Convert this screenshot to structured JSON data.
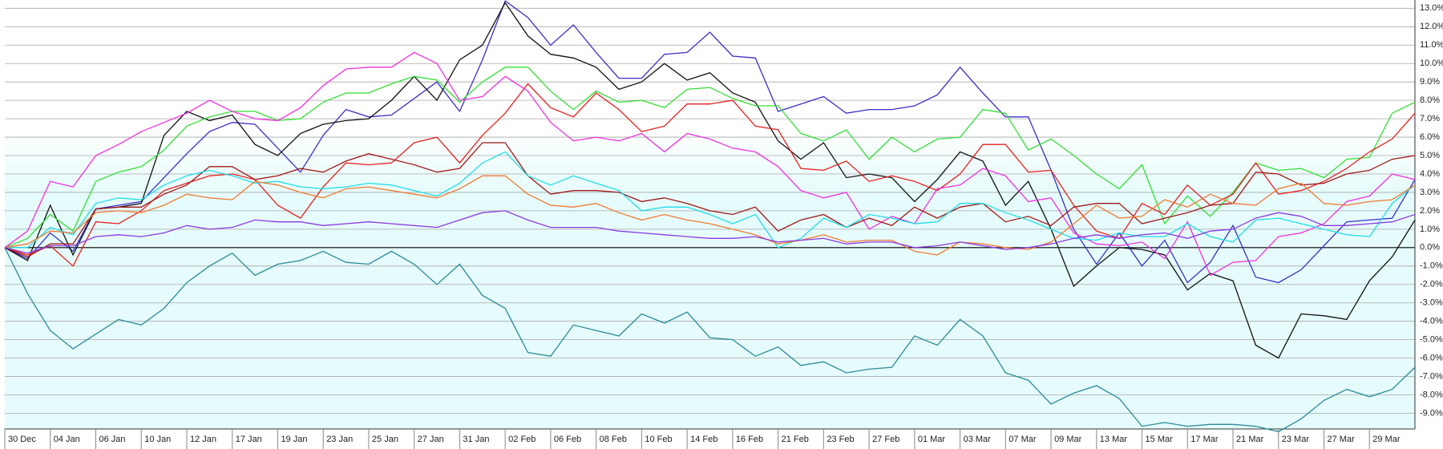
{
  "chart_data": {
    "type": "line",
    "categories": [
      "30 Dec",
      null,
      "04 Jan",
      null,
      "06 Jan",
      null,
      "10 Jan",
      null,
      "12 Jan",
      null,
      "17 Jan",
      null,
      "19 Jan",
      null,
      "23 Jan",
      null,
      "25 Jan",
      null,
      "27 Jan",
      null,
      "31 Jan",
      null,
      "02 Feb",
      null,
      "06 Feb",
      null,
      "08 Feb",
      null,
      "10 Feb",
      null,
      "14 Feb",
      null,
      "16 Feb",
      null,
      "21 Feb",
      null,
      "23 Feb",
      null,
      "27 Feb",
      null,
      "01 Mar",
      null,
      "03 Mar",
      null,
      "07 Mar",
      null,
      "09 Mar",
      null,
      "13 Mar",
      null,
      "15 Mar",
      null,
      "17 Mar",
      null,
      "21 Mar",
      null,
      "23 Mar",
      null,
      "27 Mar",
      null,
      "29 Mar",
      null,
      null
    ],
    "ylim": [
      -9.85,
      13.45
    ],
    "yticks": [
      {
        "value": -9,
        "label": "-9.0%"
      },
      {
        "value": -8,
        "label": "-8.0%"
      },
      {
        "value": -7,
        "label": "-7.0%"
      },
      {
        "value": -6,
        "label": "-6.0%"
      },
      {
        "value": -5,
        "label": "-5.0%"
      },
      {
        "value": -4,
        "label": "-4.0%"
      },
      {
        "value": -3,
        "label": "-3.0%"
      },
      {
        "value": -2,
        "label": "-2.0%"
      },
      {
        "value": -1,
        "label": "-1.0%"
      },
      {
        "value": 0,
        "label": "0.0%"
      },
      {
        "value": 1,
        "label": "1.0%"
      },
      {
        "value": 2,
        "label": "2.0%"
      },
      {
        "value": 3,
        "label": "3.0%"
      },
      {
        "value": 4,
        "label": "4.0%"
      },
      {
        "value": 5,
        "label": "5.0%"
      },
      {
        "value": 6,
        "label": "6.0%"
      },
      {
        "value": 7,
        "label": "7.0%"
      },
      {
        "value": 8,
        "label": "8.0%"
      },
      {
        "value": 9,
        "label": "9.0%"
      },
      {
        "value": 10,
        "label": "10.0%"
      },
      {
        "value": 11,
        "label": "11.0%"
      },
      {
        "value": 12,
        "label": "12.0%"
      },
      {
        "value": 13,
        "label": "13.0%"
      }
    ],
    "grid": true,
    "series": [
      {
        "color": "#2a8a9a",
        "values": [
          0,
          -2.5,
          -4.5,
          -5.5,
          -4.7,
          -3.9,
          -4.2,
          -3.3,
          -1.9,
          -1.0,
          -0.3,
          -1.5,
          -0.9,
          -0.7,
          -0.2,
          -0.8,
          -0.9,
          -0.2,
          -0.9,
          -2.0,
          -0.9,
          -2.6,
          -3.3,
          -5.7,
          -5.9,
          -4.2,
          -4.5,
          -4.8,
          -3.6,
          -4.1,
          -3.5,
          -4.9,
          -5.0,
          -5.9,
          -5.4,
          -6.4,
          -6.2,
          -6.8,
          -6.6,
          -6.5,
          -4.8,
          -5.3,
          -3.9,
          -4.8,
          -6.8,
          -7.2,
          -8.5,
          -7.9,
          -7.5,
          -8.2,
          -9.7,
          -9.5,
          -9.7,
          -9.6,
          -9.6,
          -9.7,
          -10.0,
          -9.3,
          -8.3,
          -7.7,
          -8.1,
          -7.7,
          -6.5
        ]
      },
      {
        "color": "#3a2fc8",
        "values": [
          0,
          -0.6,
          0.8,
          -0.2,
          2.1,
          2.3,
          2.5,
          3.8,
          5.1,
          6.3,
          6.8,
          6.7,
          5.4,
          4.1,
          6.1,
          7.5,
          7.1,
          7.2,
          8.1,
          9.0,
          7.4,
          10.2,
          13.4,
          12.5,
          11.0,
          12.1,
          10.6,
          9.2,
          9.2,
          10.5,
          10.6,
          11.7,
          10.4,
          10.3,
          7.4,
          7.8,
          8.2,
          7.3,
          7.5,
          7.5,
          7.7,
          8.3,
          9.8,
          8.4,
          7.1,
          7.1,
          4.2,
          1.0,
          -0.9,
          0.8,
          -1.0,
          0.4,
          -1.9,
          -0.8,
          1.2,
          -1.6,
          -1.9,
          -1.2,
          0.1,
          1.4,
          1.5,
          1.6,
          3.7
        ]
      },
      {
        "color": "#111111",
        "values": [
          0,
          -0.7,
          2.3,
          -0.4,
          2.1,
          2.2,
          2.4,
          6.1,
          7.4,
          6.9,
          7.2,
          5.6,
          5.0,
          6.2,
          6.7,
          6.9,
          7.0,
          8.0,
          9.3,
          8.0,
          10.2,
          11.0,
          13.3,
          11.5,
          10.5,
          10.3,
          9.8,
          8.6,
          9.0,
          10.0,
          9.1,
          9.5,
          8.4,
          7.9,
          5.8,
          4.8,
          5.7,
          3.8,
          4.0,
          3.8,
          2.5,
          3.7,
          5.2,
          4.7,
          2.3,
          3.6,
          1.0,
          -2.1,
          -1.0,
          0.0,
          -0.1,
          -0.4,
          -2.3,
          -1.4,
          -1.8,
          -5.3,
          -6.0,
          -3.6,
          -3.7,
          -3.9,
          -1.8,
          -0.5,
          1.5
        ]
      },
      {
        "color": "#33e033",
        "values": [
          0,
          0.5,
          1.8,
          0.9,
          3.6,
          4.1,
          4.4,
          5.3,
          6.6,
          7.1,
          7.4,
          7.4,
          6.9,
          7.0,
          7.9,
          8.4,
          8.4,
          8.9,
          9.3,
          9.1,
          7.9,
          9.0,
          9.8,
          9.8,
          8.5,
          7.5,
          8.5,
          7.9,
          8.0,
          7.6,
          8.6,
          8.7,
          8.1,
          7.7,
          7.7,
          6.2,
          5.8,
          6.4,
          4.8,
          6.0,
          5.2,
          5.9,
          6.0,
          7.5,
          7.3,
          5.3,
          5.9,
          5.0,
          4.0,
          3.2,
          4.5,
          1.3,
          2.8,
          1.7,
          3.0,
          4.6,
          4.2,
          4.3,
          3.8,
          4.8,
          4.9,
          7.3,
          7.9
        ]
      },
      {
        "color": "#e82020",
        "values": [
          0,
          -0.4,
          0.1,
          -1.0,
          1.4,
          1.3,
          2.0,
          3.1,
          3.5,
          3.9,
          4.0,
          3.7,
          2.3,
          1.6,
          3.3,
          4.6,
          4.5,
          4.6,
          5.7,
          6.0,
          4.6,
          6.1,
          7.3,
          8.9,
          7.6,
          7.1,
          8.4,
          7.5,
          6.3,
          6.6,
          7.8,
          7.8,
          8.0,
          6.6,
          6.4,
          4.3,
          4.2,
          4.7,
          3.6,
          3.9,
          3.6,
          3.1,
          4.0,
          5.6,
          5.6,
          4.1,
          4.2,
          2.3,
          0.9,
          0.5,
          2.4,
          1.8,
          3.4,
          2.3,
          2.9,
          4.6,
          2.9,
          3.1,
          3.6,
          4.3,
          5.2,
          5.9,
          7.3
        ]
      },
      {
        "color": "#f030e0",
        "values": [
          0,
          0.9,
          3.6,
          3.3,
          5.0,
          5.6,
          6.3,
          6.8,
          7.3,
          8.0,
          7.4,
          7.0,
          6.9,
          7.6,
          8.8,
          9.7,
          9.8,
          9.8,
          10.6,
          10.0,
          8.0,
          8.2,
          9.3,
          8.5,
          6.8,
          5.8,
          6.0,
          5.8,
          6.2,
          5.2,
          6.2,
          5.9,
          5.4,
          5.2,
          4.4,
          3.1,
          2.7,
          3.0,
          1.0,
          1.7,
          1.3,
          3.2,
          3.4,
          4.3,
          3.9,
          2.5,
          2.7,
          0.8,
          0.2,
          0.1,
          0.3,
          -0.6,
          1.4,
          -1.5,
          -0.8,
          -0.7,
          0.6,
          0.8,
          1.3,
          2.5,
          2.8,
          4.0,
          3.7
        ]
      },
      {
        "color": "#a01818",
        "values": [
          0,
          -0.5,
          0.2,
          0.2,
          2.1,
          2.2,
          2.2,
          2.9,
          3.4,
          4.4,
          4.4,
          3.7,
          3.9,
          4.3,
          4.1,
          4.7,
          5.1,
          4.8,
          4.5,
          4.1,
          4.3,
          5.7,
          5.7,
          3.9,
          2.9,
          3.1,
          3.1,
          3.0,
          2.5,
          2.7,
          2.4,
          2.0,
          1.8,
          2.2,
          0.9,
          1.5,
          1.8,
          1.1,
          1.6,
          1.2,
          2.2,
          1.6,
          2.2,
          2.4,
          1.4,
          1.7,
          1.2,
          2.2,
          2.4,
          2.4,
          1.3,
          1.6,
          1.9,
          2.3,
          2.4,
          4.1,
          4.0,
          3.4,
          3.5,
          4.0,
          4.2,
          4.8,
          5.0
        ]
      },
      {
        "color": "#22dde8",
        "values": [
          0,
          0.0,
          1.1,
          0.7,
          2.4,
          2.7,
          2.6,
          3.4,
          3.9,
          4.2,
          3.9,
          3.5,
          3.6,
          3.3,
          3.2,
          3.3,
          3.5,
          3.4,
          3.1,
          2.8,
          3.5,
          4.6,
          5.2,
          3.9,
          3.4,
          3.9,
          3.5,
          3.1,
          2.0,
          2.2,
          2.2,
          1.8,
          1.3,
          1.8,
          0.0,
          0.5,
          1.6,
          1.1,
          1.8,
          1.6,
          1.3,
          1.4,
          2.4,
          2.4,
          1.9,
          1.5,
          1.0,
          0.5,
          0.4,
          0.8,
          0.6,
          0.6,
          1.3,
          0.6,
          0.3,
          1.5,
          1.6,
          1.3,
          1.0,
          0.7,
          0.6,
          2.4,
          3.4
        ]
      },
      {
        "color": "#f07a30",
        "values": [
          0,
          0.2,
          0.9,
          0.8,
          1.9,
          2.0,
          1.9,
          2.3,
          2.9,
          2.7,
          2.6,
          3.6,
          3.4,
          3.0,
          2.7,
          3.2,
          3.3,
          3.1,
          2.9,
          2.7,
          3.2,
          3.9,
          3.9,
          2.9,
          2.3,
          2.2,
          2.4,
          1.9,
          1.5,
          1.8,
          1.5,
          1.3,
          1.0,
          0.7,
          0.2,
          0.4,
          0.7,
          0.3,
          0.4,
          0.4,
          -0.2,
          -0.4,
          0.3,
          0.2,
          0.0,
          -0.1,
          0.3,
          1.3,
          2.3,
          1.6,
          1.7,
          2.6,
          2.2,
          2.9,
          2.4,
          2.3,
          3.2,
          3.5,
          2.4,
          2.3,
          2.5,
          2.6,
          3.4
        ]
      },
      {
        "color": "#8a3ae0",
        "values": [
          0,
          -0.3,
          0.1,
          0.1,
          0.6,
          0.7,
          0.6,
          0.8,
          1.2,
          1.0,
          1.1,
          1.5,
          1.4,
          1.4,
          1.2,
          1.3,
          1.4,
          1.3,
          1.2,
          1.1,
          1.5,
          1.9,
          2.0,
          1.5,
          1.1,
          1.1,
          1.1,
          0.9,
          0.8,
          0.7,
          0.6,
          0.5,
          0.5,
          0.6,
          0.3,
          0.4,
          0.5,
          0.2,
          0.3,
          0.3,
          0.0,
          0.1,
          0.3,
          0.1,
          -0.1,
          0.0,
          0.2,
          0.5,
          0.7,
          0.5,
          0.7,
          0.8,
          0.5,
          0.9,
          1.0,
          1.6,
          1.9,
          1.7,
          1.2,
          1.2,
          1.3,
          1.4,
          1.8
        ]
      }
    ]
  }
}
